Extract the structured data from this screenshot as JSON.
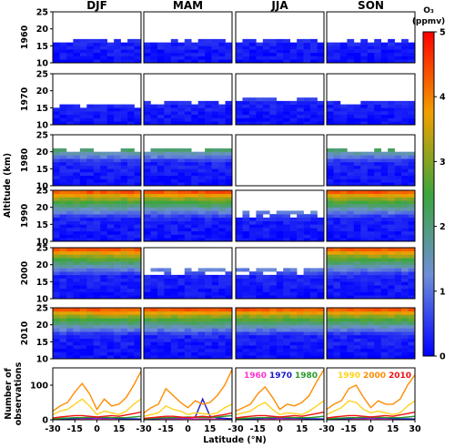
{
  "chart_data": {
    "type": "heatmap",
    "seasons": [
      "DJF",
      "MAM",
      "JJA",
      "SON"
    ],
    "decades": [
      "1960",
      "1970",
      "1980",
      "1990",
      "2000",
      "2010"
    ],
    "ylabel": "Altitude (km)",
    "xlabel": "Latitude (°N)",
    "x_ticks": [
      "-30",
      "-15",
      "0",
      "15",
      "30"
    ],
    "x_range": [
      -30,
      30
    ],
    "y_ticks": [
      "10",
      "15",
      "20",
      "25"
    ],
    "y_range": [
      10,
      25
    ],
    "colorbar": {
      "label_line1": "O₃",
      "label_line2": "(ppmv)",
      "range": [
        0,
        5
      ],
      "ticks": [
        "0",
        "1",
        "2",
        "3",
        "4",
        "5"
      ],
      "stops": [
        "#0000ff",
        "#6e8fd6",
        "#3ca63c",
        "#f0a000",
        "#ff0000"
      ]
    },
    "coverage_top_km": [
      [
        17,
        17,
        17,
        17
      ],
      [
        16,
        17,
        18,
        17
      ],
      [
        21,
        21,
        0,
        21
      ],
      [
        25,
        25,
        18.5,
        25
      ],
      [
        25,
        18.5,
        18.5,
        25
      ],
      [
        25,
        25,
        25,
        25
      ]
    ],
    "obs_panel": {
      "ylabel_line1": "Number of",
      "ylabel_line2": "observations",
      "y_ticks": [
        "0",
        "100"
      ],
      "y_range": [
        0,
        150
      ],
      "legend": [
        {
          "name": "1960",
          "color": "#ff33cc"
        },
        {
          "name": "1970",
          "color": "#1a1acc"
        },
        {
          "name": "1980",
          "color": "#2a9a2a"
        },
        {
          "name": "1990",
          "color": "#ffd21a"
        },
        {
          "name": "2000",
          "color": "#ff8c00"
        },
        {
          "name": "2010",
          "color": "#ee1111"
        }
      ],
      "latitudes": [
        -30,
        -25,
        -20,
        -15,
        -10,
        -5,
        0,
        5,
        10,
        15,
        20,
        25,
        30
      ],
      "counts": [
        [
          [
            1,
            2,
            2,
            3,
            3,
            3,
            4,
            3,
            3,
            2,
            2,
            2,
            2
          ],
          [
            2,
            3,
            3,
            4,
            5,
            5,
            6,
            5,
            5,
            4,
            3,
            3,
            2
          ],
          [
            3,
            4,
            5,
            6,
            6,
            7,
            8,
            7,
            6,
            6,
            6,
            8,
            10
          ],
          [
            15,
            25,
            30,
            45,
            60,
            40,
            15,
            25,
            20,
            15,
            25,
            45,
            60
          ],
          [
            25,
            40,
            50,
            80,
            105,
            75,
            30,
            60,
            40,
            45,
            65,
            100,
            140
          ],
          [
            5,
            8,
            10,
            12,
            12,
            10,
            8,
            10,
            12,
            10,
            14,
            18,
            22
          ]
        ],
        [
          [
            1,
            2,
            2,
            3,
            3,
            3,
            4,
            3,
            3,
            2,
            2,
            2,
            2
          ],
          [
            2,
            3,
            4,
            5,
            5,
            6,
            5,
            8,
            60,
            10,
            5,
            4,
            3
          ],
          [
            3,
            4,
            5,
            6,
            6,
            7,
            8,
            7,
            6,
            6,
            8,
            10,
            12
          ],
          [
            10,
            15,
            20,
            40,
            30,
            25,
            15,
            20,
            18,
            15,
            20,
            35,
            45
          ],
          [
            20,
            35,
            45,
            90,
            70,
            50,
            35,
            55,
            45,
            50,
            70,
            100,
            145
          ],
          [
            4,
            6,
            8,
            10,
            10,
            8,
            6,
            8,
            10,
            8,
            12,
            15,
            20
          ]
        ],
        [
          [
            1,
            2,
            2,
            3,
            3,
            3,
            4,
            3,
            3,
            2,
            2,
            2,
            2
          ],
          [
            2,
            3,
            3,
            4,
            5,
            5,
            6,
            5,
            5,
            4,
            3,
            3,
            2
          ],
          [
            3,
            4,
            5,
            6,
            6,
            7,
            8,
            7,
            6,
            6,
            6,
            8,
            10
          ],
          [
            15,
            20,
            25,
            40,
            50,
            30,
            15,
            20,
            18,
            15,
            25,
            40,
            55
          ],
          [
            25,
            35,
            45,
            75,
            95,
            65,
            30,
            45,
            40,
            50,
            70,
            110,
            145
          ],
          [
            5,
            8,
            10,
            12,
            12,
            10,
            8,
            10,
            12,
            10,
            14,
            18,
            22
          ]
        ],
        [
          [
            1,
            2,
            2,
            3,
            3,
            3,
            4,
            3,
            3,
            2,
            2,
            2,
            2
          ],
          [
            2,
            3,
            3,
            4,
            5,
            5,
            6,
            5,
            5,
            4,
            3,
            3,
            2
          ],
          [
            3,
            4,
            5,
            6,
            6,
            7,
            8,
            7,
            6,
            6,
            6,
            8,
            10
          ],
          [
            15,
            25,
            35,
            55,
            50,
            30,
            20,
            25,
            20,
            15,
            20,
            40,
            55
          ],
          [
            30,
            45,
            55,
            90,
            100,
            65,
            35,
            55,
            45,
            45,
            60,
            100,
            130
          ],
          [
            5,
            8,
            10,
            12,
            12,
            10,
            8,
            10,
            12,
            10,
            14,
            18,
            22
          ]
        ]
      ]
    }
  }
}
